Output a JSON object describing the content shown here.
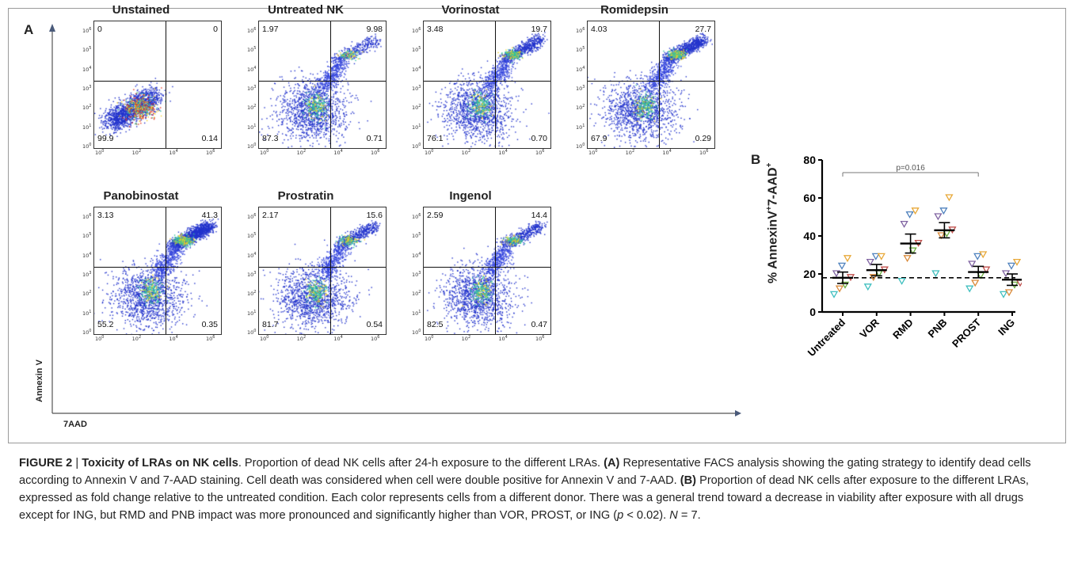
{
  "panel_a": {
    "letter": "A",
    "x_axis_label": "7AAD",
    "y_axis_label": "Annexin V",
    "tick_labels": [
      "10",
      "10",
      "10",
      "10",
      "10",
      "10",
      "10",
      "10"
    ],
    "tick_exponents_x": [
      "0",
      "2",
      "4",
      "6"
    ],
    "tick_exponents_y": [
      "0",
      "1",
      "2",
      "3",
      "4",
      "5",
      "6"
    ],
    "plots": [
      {
        "title": "Unstained",
        "ul": "0",
        "ur": "0",
        "ll": "99.9",
        "lr": "0.14"
      },
      {
        "title": "Untreated NK",
        "ul": "1.97",
        "ur": "9.98",
        "ll": "87.3",
        "lr": "0.71"
      },
      {
        "title": "Vorinostat",
        "ul": "3.48",
        "ur": "19.7",
        "ll": "76.1",
        "lr": "0.70"
      },
      {
        "title": "Romidepsin",
        "ul": "4.03",
        "ur": "27.7",
        "ll": "67.9",
        "lr": "0.29"
      },
      {
        "title": "Panobinostat",
        "ul": "3.13",
        "ur": "41.3",
        "ll": "55.2",
        "lr": "0.35"
      },
      {
        "title": "Prostratin",
        "ul": "2.17",
        "ur": "15.6",
        "ll": "81.7",
        "lr": "0.54"
      },
      {
        "title": "Ingenol",
        "ul": "2.59",
        "ur": "14.4",
        "ll": "82.5",
        "lr": "0.47"
      }
    ]
  },
  "panel_b": {
    "letter": "B",
    "y_label_main": "% AnnexinV",
    "y_label_sup1": "+",
    "y_label_mid": "7-AAD",
    "y_label_sup2": "+",
    "significance": "p=0.016"
  },
  "chart_data": {
    "type": "scatter",
    "categories": [
      "Untreated",
      "VOR",
      "RMD",
      "PNB",
      "PROST",
      "ING"
    ],
    "ylim": [
      0,
      80
    ],
    "yticks": [
      "0",
      "20",
      "40",
      "60",
      "80"
    ],
    "reference_line_y": 18,
    "donor_colors": [
      "#3fbfbf",
      "#d98a3a",
      "#6cae3f",
      "#c0504d",
      "#8064a2",
      "#4f81bd",
      "#e8a838"
    ],
    "means": [
      18,
      22,
      36,
      43,
      21,
      17
    ],
    "error": [
      3,
      3,
      5,
      4,
      3,
      3
    ],
    "points": [
      [
        9,
        12,
        14,
        18,
        20,
        24,
        28
      ],
      [
        13,
        18,
        20,
        22,
        26,
        29,
        29
      ],
      [
        16,
        28,
        32,
        36,
        46,
        51,
        53
      ],
      [
        20,
        40,
        41,
        43,
        50,
        53,
        60
      ],
      [
        12,
        15,
        19,
        22,
        25,
        29,
        30
      ],
      [
        9,
        10,
        14,
        15,
        20,
        24,
        26
      ]
    ]
  },
  "caption": {
    "fig_label": "FIGURE 2",
    "sep": " | ",
    "title": "Toxicity of LRAs on NK cells",
    "line1_rest": ". Proportion of dead NK cells after 24-h exposure to the different LRAs. ",
    "a_tag": "(A)",
    "a_text": " Representative FACS analysis showing the gating strategy to identify dead cells according to Annexin V and 7-AAD staining. Cell death was considered when cell were double positive for Annexin V and 7-AAD. ",
    "b_tag": "(B)",
    "b_text": " Proportion of dead NK cells after exposure to the different LRAs, expressed as fold change relative to the untreated condition. Each color represents cells from a different donor. There was a general trend toward a decrease in viability after exposure with all drugs except for ING, but RMD and PNB impact was more pronounced and significantly higher than VOR, PROST, or ING (",
    "p_text": "p",
    "p_val": " < 0.02). ",
    "n_text": "N",
    "n_val": " = 7."
  }
}
